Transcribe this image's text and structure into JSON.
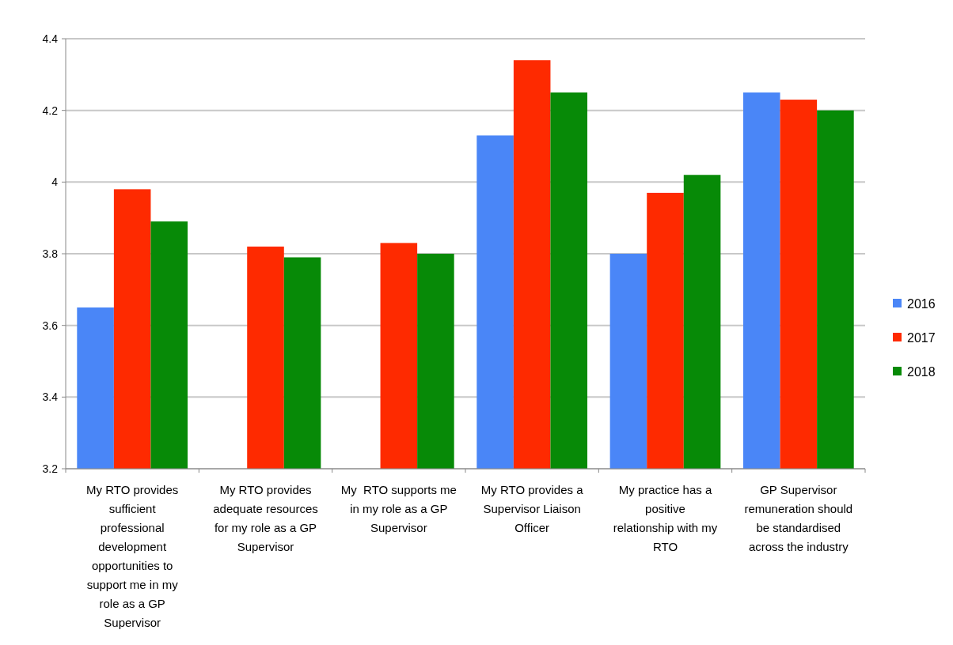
{
  "chart_data": {
    "type": "bar",
    "categories": [
      "My RTO provides sufficient professional development opportunities to support me in my role as a GP Supervisor",
      "My RTO provides adequate resources for my role as a GP Supervisor",
      "My  RTO supports me in my role as a GP Supervisor",
      "My RTO provides a Supervisor Liaison Officer",
      "My practice has a positive relationship with my RTO",
      "GP Supervisor remuneration should be standardised across the industry"
    ],
    "series": [
      {
        "name": "2016",
        "color": "#4a86f7",
        "values": [
          3.65,
          null,
          null,
          4.13,
          3.8,
          4.25
        ]
      },
      {
        "name": "2017",
        "color": "#fe2a00",
        "values": [
          3.98,
          3.82,
          3.83,
          4.34,
          3.97,
          4.23
        ]
      },
      {
        "name": "2018",
        "color": "#078a07",
        "values": [
          3.89,
          3.79,
          3.8,
          4.25,
          4.02,
          4.2
        ]
      }
    ],
    "ylim": [
      3.2,
      4.4
    ],
    "yticks": [
      3.2,
      3.4,
      3.6,
      3.8,
      4,
      4.2,
      4.4
    ],
    "grid": "y",
    "legend": "right"
  }
}
